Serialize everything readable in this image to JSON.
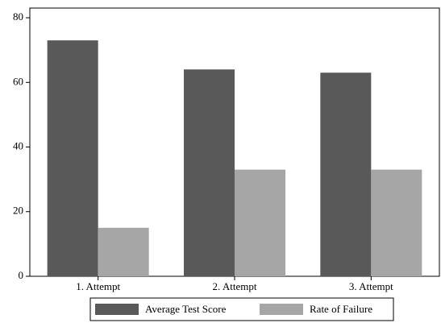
{
  "chart_data": {
    "type": "bar",
    "categories": [
      "1. Attempt",
      "2. Attempt",
      "3. Attempt"
    ],
    "series": [
      {
        "name": "Average Test Score",
        "color": "#595959",
        "values": [
          73,
          64,
          63
        ]
      },
      {
        "name": "Rate of Failure",
        "color": "#a6a6a6",
        "values": [
          15,
          33,
          33
        ]
      }
    ],
    "ylim": [
      0,
      83
    ],
    "yticks": [
      0,
      20,
      40,
      60,
      80
    ],
    "grid": false,
    "legend": "bottom"
  }
}
